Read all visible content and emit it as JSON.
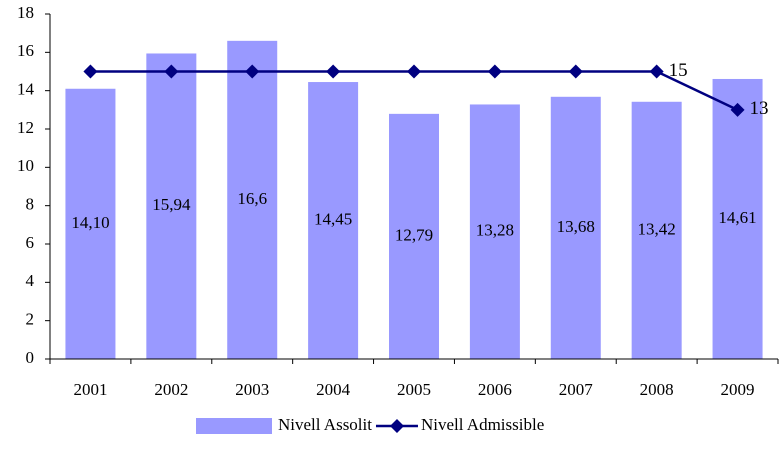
{
  "chart_data": {
    "type": "bar_line",
    "categories": [
      "2001",
      "2002",
      "2003",
      "2004",
      "2005",
      "2006",
      "2007",
      "2008",
      "2009"
    ],
    "series": [
      {
        "name": "Nivell Assolit",
        "type": "bar",
        "color": "#9999ff",
        "values": [
          14.1,
          15.94,
          16.6,
          14.45,
          12.79,
          13.28,
          13.68,
          13.42,
          14.61
        ],
        "value_labels": [
          "14,10",
          "15,94",
          "16,6",
          "14,45",
          "12,79",
          "13,28",
          "13,68",
          "13,42",
          "14,61"
        ]
      },
      {
        "name": "Nivell Admissible",
        "type": "line",
        "color": "#000080",
        "values": [
          15,
          15,
          15,
          15,
          15,
          15,
          15,
          15,
          13
        ],
        "value_labels": [
          null,
          null,
          null,
          null,
          null,
          null,
          null,
          "15",
          "13"
        ]
      }
    ],
    "ylim": [
      0,
      18
    ],
    "yticks": [
      0,
      2,
      4,
      6,
      8,
      10,
      12,
      14,
      16,
      18
    ],
    "grid": false,
    "legend": "bottom"
  }
}
